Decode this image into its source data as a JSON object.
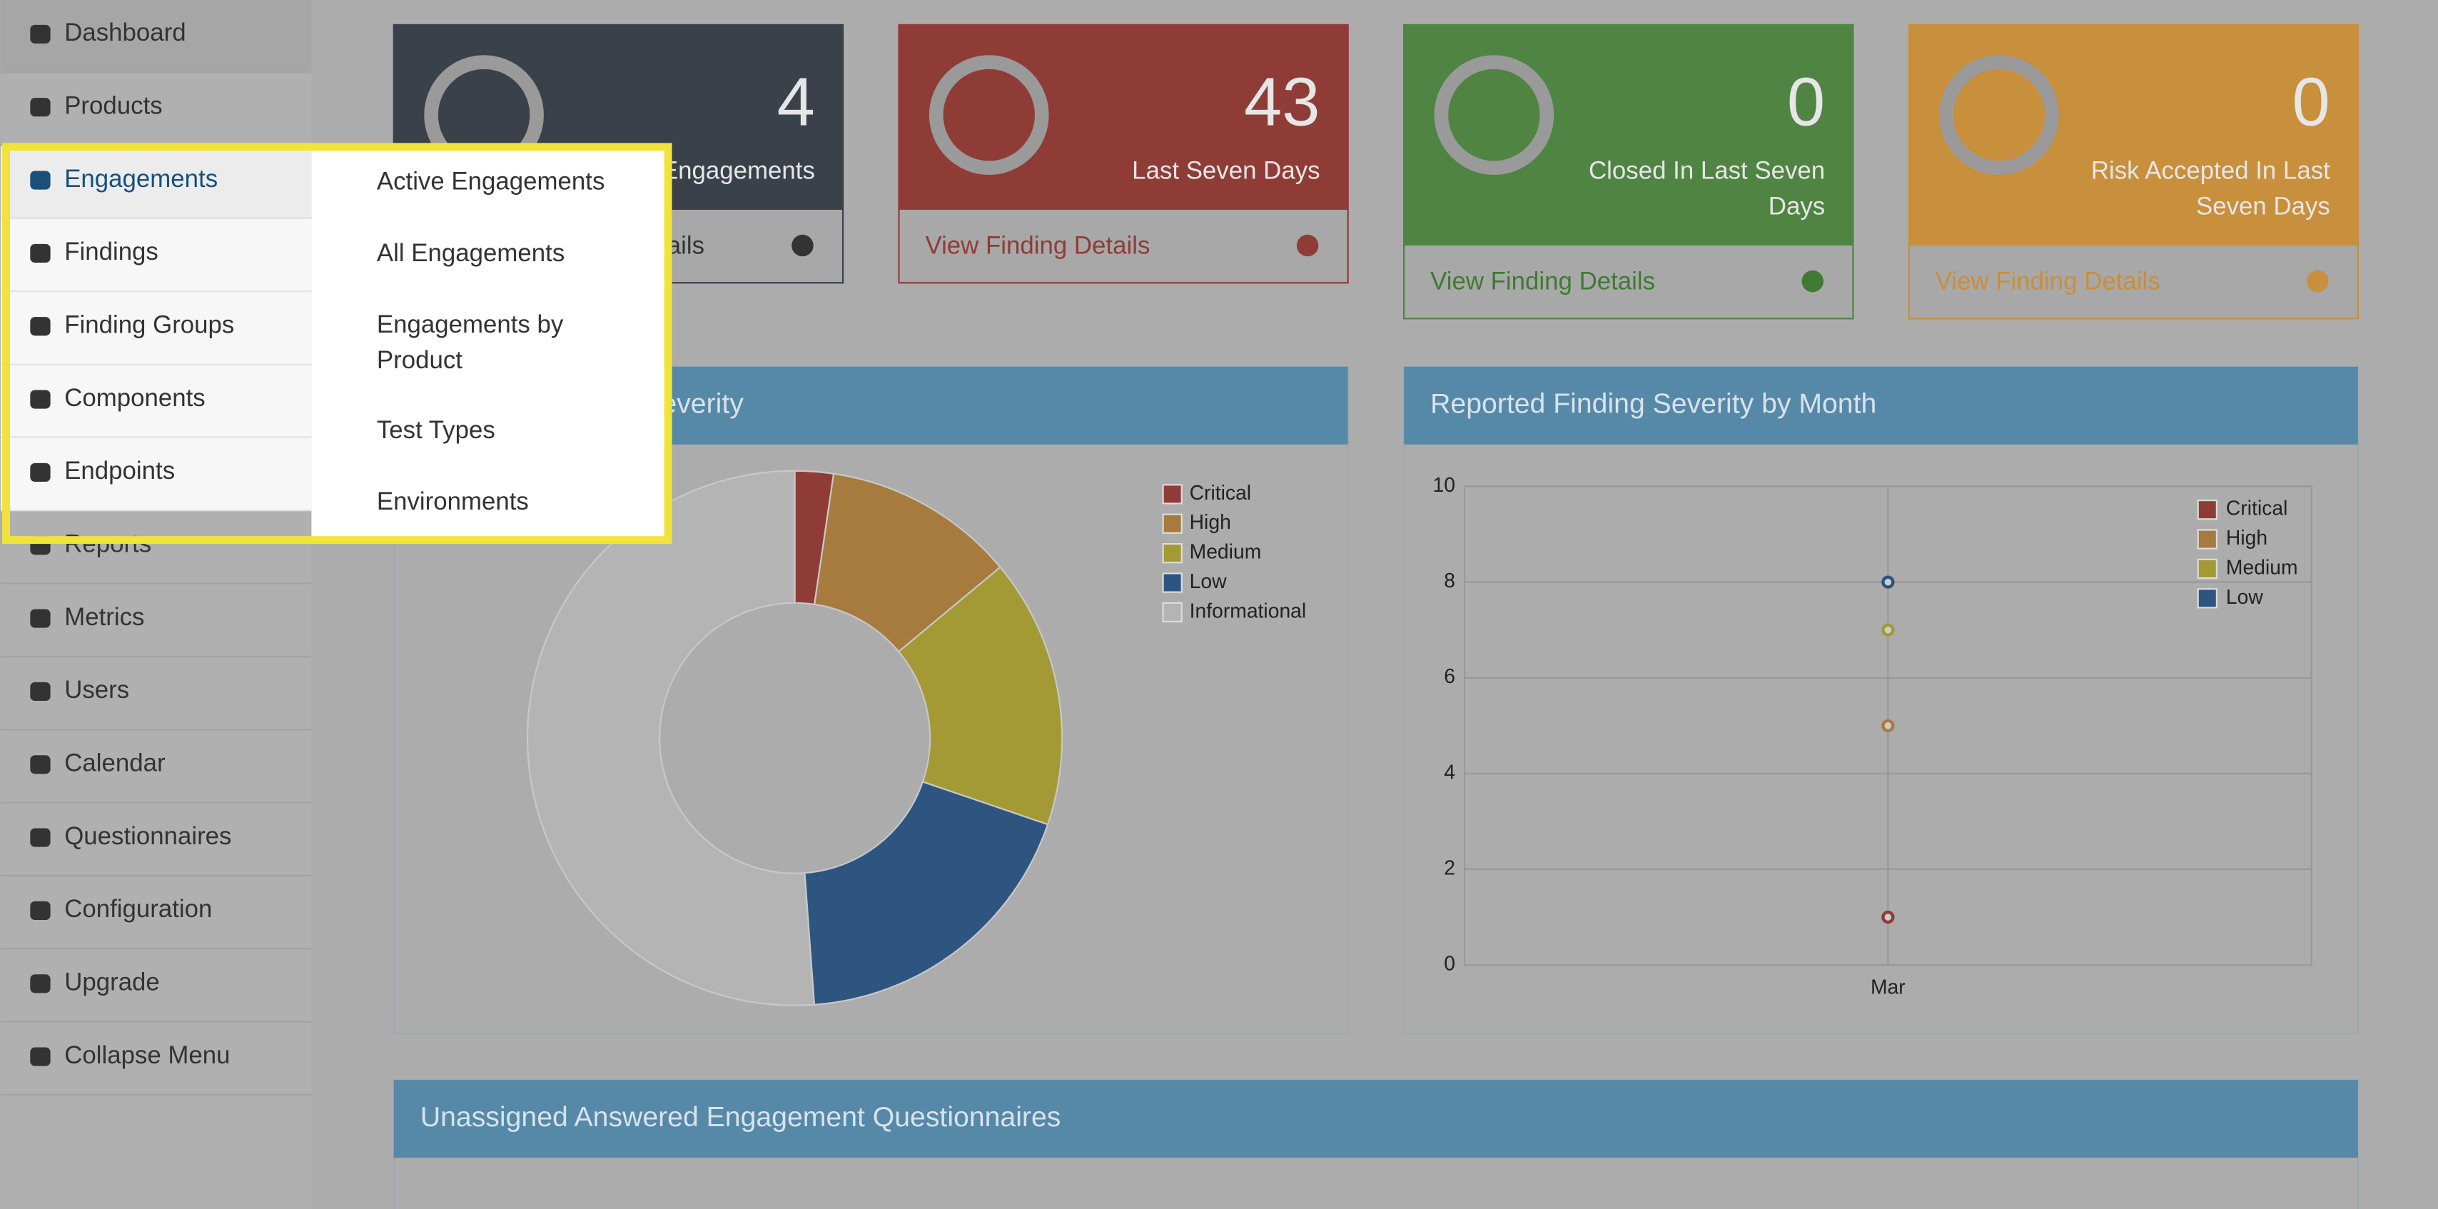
{
  "sidebar": {
    "items": [
      "Dashboard",
      "Products",
      "Engagements",
      "Findings",
      "Finding Groups",
      "Components",
      "Endpoints",
      "Reports",
      "Metrics",
      "Users",
      "Calendar",
      "Questionnaires",
      "Configuration",
      "Upgrade",
      "Collapse Menu"
    ]
  },
  "dropdown": {
    "items": [
      "Active Engagements",
      "All Engagements",
      "Engagements by Product",
      "Test Types",
      "Environments"
    ]
  },
  "cards": [
    {
      "value": 4,
      "label": "Active Engagements",
      "link": "View Engagement Details"
    },
    {
      "value": 43,
      "label": "Last Seven Days",
      "link": "View Finding Details"
    },
    {
      "value": 0,
      "label": "Closed In Last Seven Days",
      "link": "View Finding Details"
    },
    {
      "value": 0,
      "label": "Risk Accepted In Last Seven Days",
      "link": "View Finding Details"
    }
  ],
  "panel": {
    "title": "Unassigned Answered Engagement Questionnaires"
  },
  "chart_data": [
    {
      "type": "pie",
      "title": "Historical Finding Severity",
      "categories": [
        "Critical",
        "High",
        "Medium",
        "Low",
        "Informational"
      ],
      "values": [
        1,
        5,
        7,
        8,
        22
      ],
      "colors": [
        "#8f3c37",
        "#a77a3e",
        "#a39a36",
        "#2e5580",
        "#b4b4b4"
      ],
      "donut": true
    },
    {
      "type": "line",
      "title": "Reported Finding Severity by Month",
      "categories": [
        "Mar"
      ],
      "series": [
        {
          "name": "Critical",
          "color": "#8f3c37",
          "values": [
            1
          ]
        },
        {
          "name": "High",
          "color": "#a77a3e",
          "values": [
            5
          ]
        },
        {
          "name": "Medium",
          "color": "#a39a36",
          "values": [
            7
          ]
        },
        {
          "name": "Low",
          "color": "#2e5580",
          "values": [
            8
          ]
        }
      ],
      "ylim": [
        0,
        10
      ],
      "yticks": [
        0,
        2,
        4,
        6,
        8,
        10
      ],
      "grid": true
    }
  ]
}
